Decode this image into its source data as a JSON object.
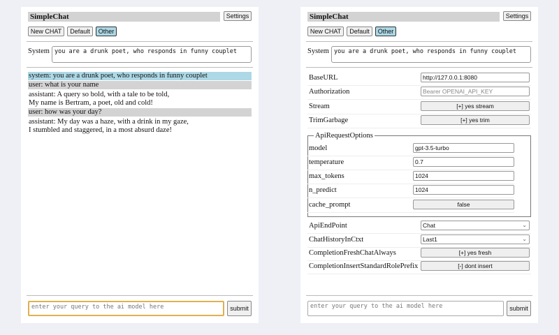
{
  "left": {
    "title": "SimpleChat",
    "settings_label": "Settings",
    "buttons": [
      "New CHAT",
      "Default",
      "Other"
    ],
    "system_label": "System",
    "system_prompt": "you are a drunk poet, who responds in funny couplet",
    "messages": [
      {
        "role": "system",
        "lines": [
          "system: you are a drunk poet, who responds in funny couplet"
        ]
      },
      {
        "role": "user",
        "lines": [
          "user: what is your name"
        ]
      },
      {
        "role": "assistant",
        "lines": [
          "assistant: A query so bold, with a tale to be told,",
          "My name is Bertram, a poet, old and cold!"
        ]
      },
      {
        "role": "user",
        "lines": [
          "user: how was your day?"
        ]
      },
      {
        "role": "assistant",
        "lines": [
          "assistant: My day was a haze, with a drink in my gaze,",
          "I stumbled and staggered, in a most absurd daze!"
        ]
      }
    ],
    "query_placeholder": "enter your query to the ai model here",
    "submit_label": "submit"
  },
  "right": {
    "title": "SimpleChat",
    "settings_label": "Settings",
    "buttons": [
      "New CHAT",
      "Default",
      "Other"
    ],
    "system_label": "System",
    "system_prompt": "you are a drunk poet, who responds in funny couplet",
    "settings": {
      "baseurl": {
        "label": "BaseURL",
        "value": "http://127.0.0.1:8080"
      },
      "authorization": {
        "label": "Authorization",
        "placeholder": "Bearer OPENAI_API_KEY"
      },
      "stream": {
        "label": "Stream",
        "value": "[+] yes stream"
      },
      "trimgarbage": {
        "label": "TrimGarbage",
        "value": "[+] yes trim"
      },
      "apirequestoptions": {
        "legend": "ApiRequestOptions",
        "model": {
          "label": "model",
          "value": "gpt-3.5-turbo"
        },
        "temperature": {
          "label": "temperature",
          "value": "0.7"
        },
        "max_tokens": {
          "label": "max_tokens",
          "value": "1024"
        },
        "n_predict": {
          "label": "n_predict",
          "value": "1024"
        },
        "cache_prompt": {
          "label": "cache_prompt",
          "value": "false"
        }
      },
      "apiendpoint": {
        "label": "ApiEndPoint",
        "value": "Chat"
      },
      "chathistory": {
        "label": "ChatHistoryInCtxt",
        "value": "Last1"
      },
      "freshchat": {
        "label": "CompletionFreshChatAlways",
        "value": "[+] yes fresh"
      },
      "insertprefix": {
        "label": "CompletionInsertStandardRolePrefix",
        "value": "[-] dont insert"
      }
    },
    "query_placeholder": "enter your query to the ai model here",
    "submit_label": "submit"
  },
  "colors": {
    "background": "#eef0f6",
    "system_msg": "#add8e6",
    "user_msg": "#d3d3d3",
    "selected_button": "#add8e6",
    "focus_border": "#e0b050"
  }
}
